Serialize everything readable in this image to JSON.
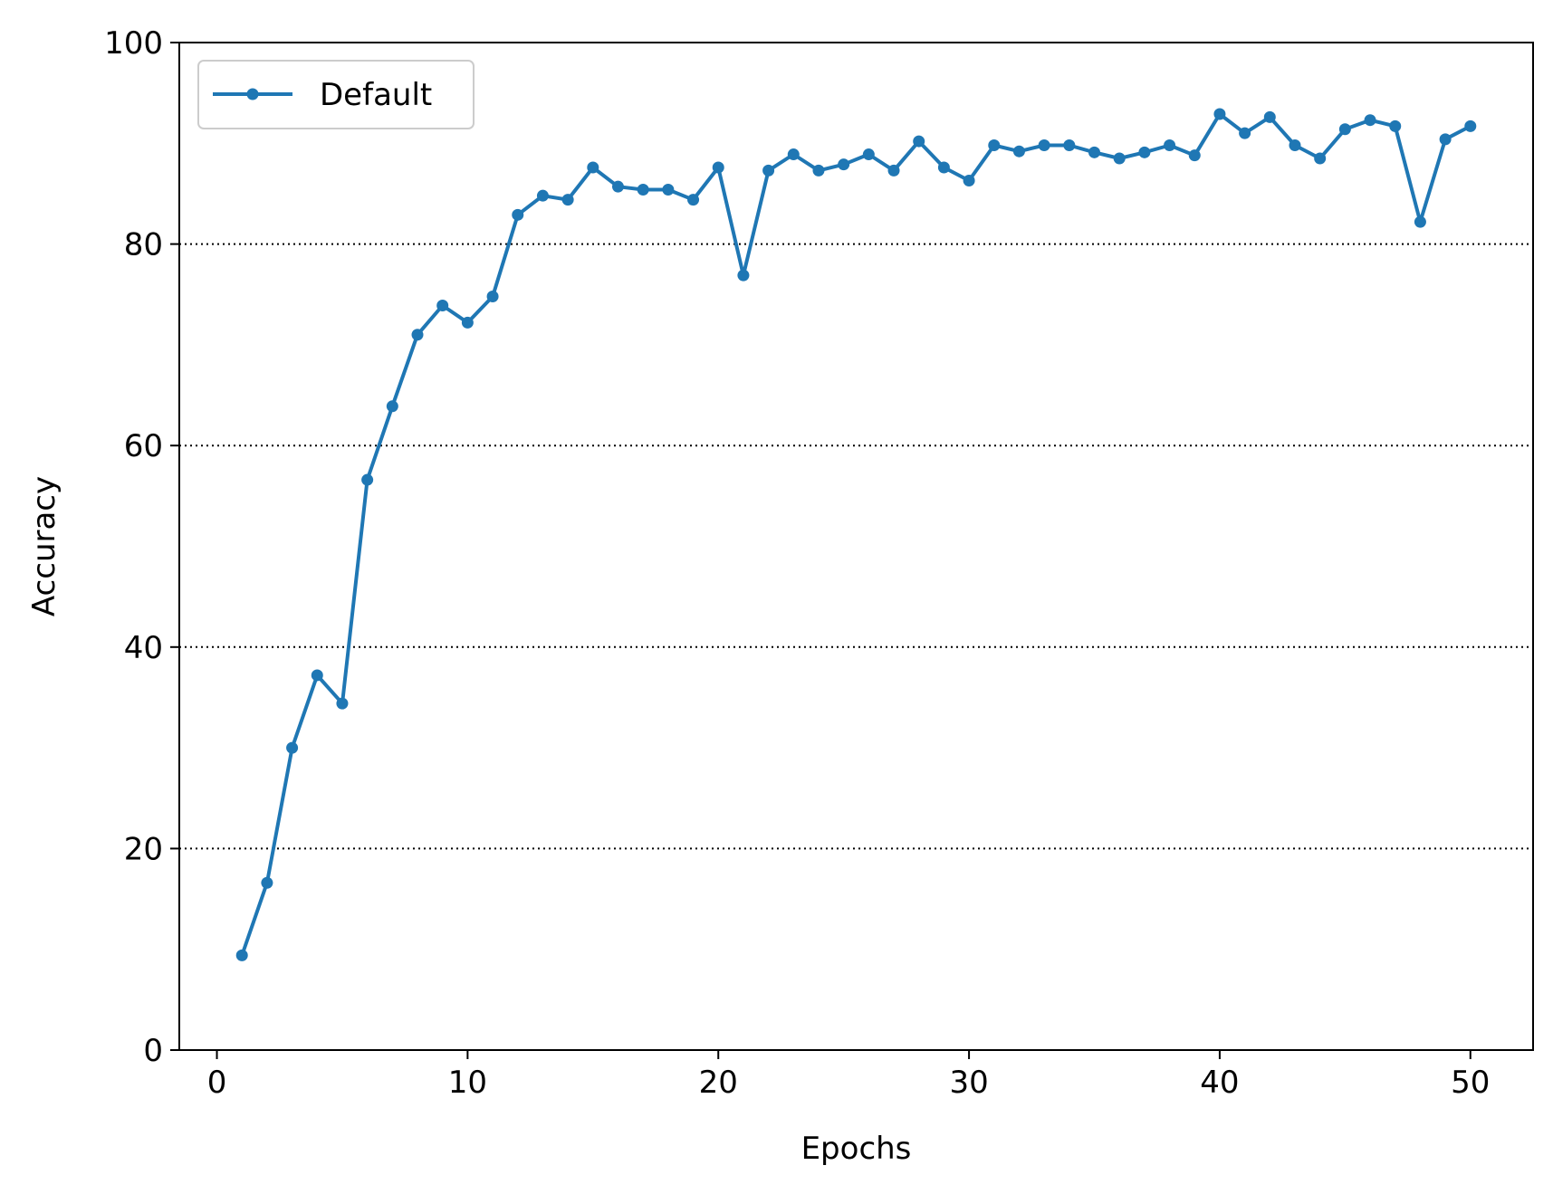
{
  "chart_data": {
    "type": "line",
    "title": "",
    "xlabel": "Epochs",
    "ylabel": "Accuracy",
    "xlim": [
      -1.5,
      52.5
    ],
    "ylim": [
      0,
      100
    ],
    "xticks": [
      0,
      10,
      20,
      30,
      40,
      50
    ],
    "yticks": [
      0,
      20,
      40,
      60,
      80,
      100
    ],
    "grid": "y-axis dotted",
    "legend_position": "top-left",
    "series": [
      {
        "name": "Default",
        "color": "#1f77b4",
        "marker": "circle",
        "x": [
          1,
          2,
          3,
          4,
          5,
          6,
          7,
          8,
          9,
          10,
          11,
          12,
          13,
          14,
          15,
          16,
          17,
          18,
          19,
          20,
          21,
          22,
          23,
          24,
          25,
          26,
          27,
          28,
          29,
          30,
          31,
          32,
          33,
          34,
          35,
          36,
          37,
          38,
          39,
          40,
          41,
          42,
          43,
          44,
          45,
          46,
          47,
          48,
          49,
          50
        ],
        "y": [
          9.4,
          16.6,
          30.0,
          37.2,
          34.4,
          56.6,
          63.9,
          71.0,
          73.9,
          72.2,
          74.8,
          82.9,
          84.8,
          84.4,
          87.6,
          85.7,
          85.4,
          85.4,
          84.4,
          87.6,
          76.9,
          87.3,
          88.9,
          87.3,
          87.9,
          88.9,
          87.3,
          90.2,
          87.6,
          86.3,
          89.8,
          89.2,
          89.8,
          89.8,
          89.1,
          88.5,
          89.1,
          89.8,
          88.8,
          92.9,
          91.0,
          92.6,
          89.8,
          88.5,
          91.4,
          92.3,
          91.7,
          82.2,
          90.4,
          91.7
        ]
      }
    ]
  }
}
